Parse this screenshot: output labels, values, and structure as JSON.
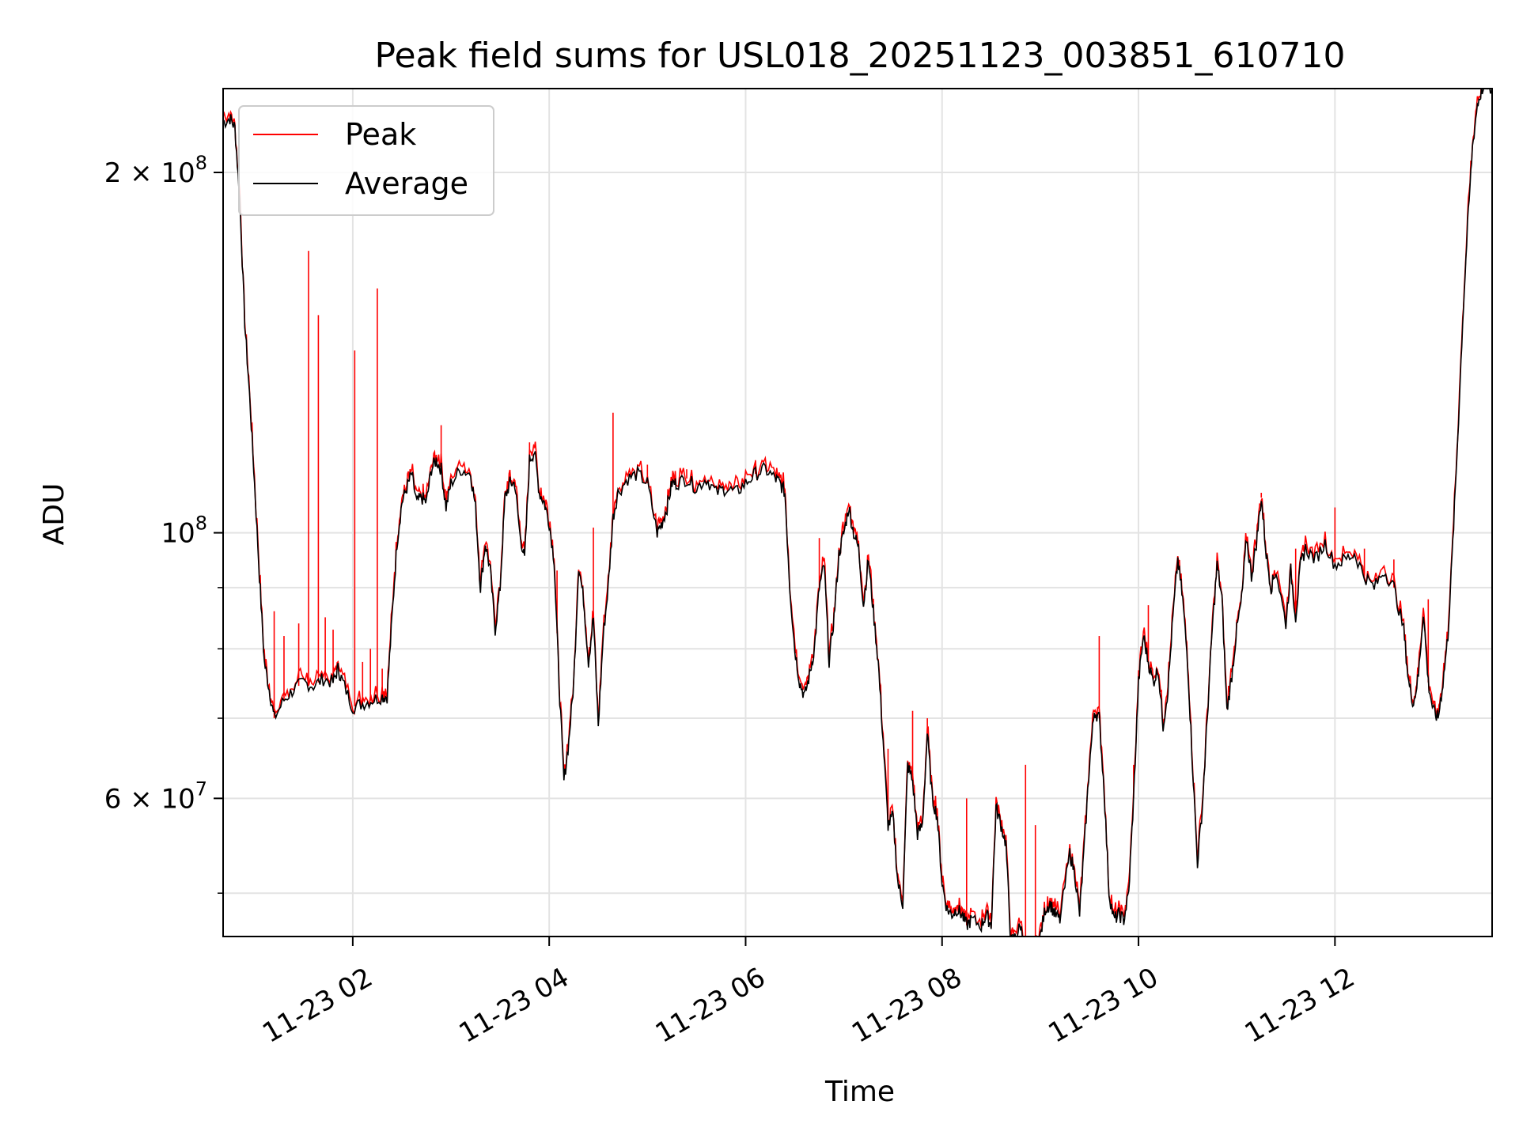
{
  "chart_data": {
    "type": "line",
    "title": "Peak field sums for USL018_20251123_003851_610710",
    "xlabel": "Time",
    "ylabel": "ADU",
    "x_unit": "hours since 2025-11-23 00:00",
    "xlim": [
      0.68,
      13.6
    ],
    "ylim": [
      46000000.0,
      235000000.0
    ],
    "yscale": "log",
    "grid": true,
    "legend_position": "top-left",
    "x_ticks": [
      {
        "value": 2,
        "label": "11-23 02"
      },
      {
        "value": 4,
        "label": "11-23 04"
      },
      {
        "value": 6,
        "label": "11-23 06"
      },
      {
        "value": 8,
        "label": "11-23 08"
      },
      {
        "value": 10,
        "label": "11-23 10"
      },
      {
        "value": 12,
        "label": "11-23 12"
      }
    ],
    "y_ticks": [
      {
        "value": 60000000.0,
        "base": "6 × 10",
        "exp": "7"
      },
      {
        "value": 100000000.0,
        "base": "10",
        "exp": "8"
      },
      {
        "value": 200000000.0,
        "base": "2 × 10",
        "exp": "8"
      }
    ],
    "y_minor_ticks": [
      50000000.0,
      70000000.0,
      80000000.0,
      90000000.0
    ],
    "series": [
      {
        "name": "Average",
        "color": "#000000",
        "points": [
          [
            0.68,
            220000000.0
          ],
          [
            0.75,
            222000000.0
          ],
          [
            0.8,
            218000000.0
          ],
          [
            0.85,
            190000000.0
          ],
          [
            0.9,
            150000000.0
          ],
          [
            0.95,
            130000000.0
          ],
          [
            1.0,
            110000000.0
          ],
          [
            1.05,
            92000000.0
          ],
          [
            1.1,
            78000000.0
          ],
          [
            1.15,
            74000000.0
          ],
          [
            1.2,
            70000000.0
          ],
          [
            1.3,
            72500000.0
          ],
          [
            1.4,
            74000000.0
          ],
          [
            1.5,
            75000000.0
          ],
          [
            1.6,
            74500000.0
          ],
          [
            1.7,
            75500000.0
          ],
          [
            1.8,
            75000000.0
          ],
          [
            1.85,
            77000000.0
          ],
          [
            1.9,
            75000000.0
          ],
          [
            2.0,
            71500000.0
          ],
          [
            2.1,
            72000000.0
          ],
          [
            2.2,
            72500000.0
          ],
          [
            2.3,
            73000000.0
          ],
          [
            2.35,
            73000000.0
          ],
          [
            2.4,
            85000000.0
          ],
          [
            2.45,
            98000000.0
          ],
          [
            2.5,
            106000000.0
          ],
          [
            2.55,
            109000000.0
          ],
          [
            2.6,
            112000000.0
          ],
          [
            2.65,
            106000000.0
          ],
          [
            2.7,
            107000000.0
          ],
          [
            2.75,
            106000000.0
          ],
          [
            2.8,
            113000000.0
          ],
          [
            2.85,
            115000000.0
          ],
          [
            2.9,
            113000000.0
          ],
          [
            2.95,
            105000000.0
          ],
          [
            3.0,
            110000000.0
          ],
          [
            3.1,
            113000000.0
          ],
          [
            3.2,
            112000000.0
          ],
          [
            3.25,
            105000000.0
          ],
          [
            3.3,
            90000000.0
          ],
          [
            3.35,
            98000000.0
          ],
          [
            3.4,
            93000000.0
          ],
          [
            3.45,
            83000000.0
          ],
          [
            3.5,
            90000000.0
          ],
          [
            3.55,
            107000000.0
          ],
          [
            3.6,
            110000000.0
          ],
          [
            3.65,
            110000000.0
          ],
          [
            3.7,
            100000000.0
          ],
          [
            3.75,
            95000000.0
          ],
          [
            3.8,
            115000000.0
          ],
          [
            3.85,
            117000000.0
          ],
          [
            3.9,
            108000000.0
          ],
          [
            3.95,
            106000000.0
          ],
          [
            4.0,
            102000000.0
          ],
          [
            4.05,
            95000000.0
          ],
          [
            4.1,
            75000000.0
          ],
          [
            4.15,
            62000000.0
          ],
          [
            4.2,
            67000000.0
          ],
          [
            4.25,
            75000000.0
          ],
          [
            4.3,
            94000000.0
          ],
          [
            4.35,
            88000000.0
          ],
          [
            4.4,
            78000000.0
          ],
          [
            4.45,
            85000000.0
          ],
          [
            4.5,
            69000000.0
          ],
          [
            4.55,
            82000000.0
          ],
          [
            4.6,
            90000000.0
          ],
          [
            4.65,
            103000000.0
          ],
          [
            4.7,
            108000000.0
          ],
          [
            4.8,
            111000000.0
          ],
          [
            4.9,
            112000000.0
          ],
          [
            5.0,
            110000000.0
          ],
          [
            5.1,
            100000000.0
          ],
          [
            5.15,
            102000000.0
          ],
          [
            5.2,
            105000000.0
          ],
          [
            5.25,
            110000000.0
          ],
          [
            5.3,
            110000000.0
          ],
          [
            5.4,
            111000000.0
          ],
          [
            5.5,
            109000000.0
          ],
          [
            5.6,
            111000000.0
          ],
          [
            5.7,
            108000000.0
          ],
          [
            5.8,
            109000000.0
          ],
          [
            5.9,
            108000000.0
          ],
          [
            6.0,
            110000000.0
          ],
          [
            6.1,
            112000000.0
          ],
          [
            6.2,
            113000000.0
          ],
          [
            6.3,
            111000000.0
          ],
          [
            6.35,
            110000000.0
          ],
          [
            6.4,
            108000000.0
          ],
          [
            6.45,
            90000000.0
          ],
          [
            6.5,
            80000000.0
          ],
          [
            6.55,
            75000000.0
          ],
          [
            6.6,
            73000000.0
          ],
          [
            6.65,
            76000000.0
          ],
          [
            6.7,
            80000000.0
          ],
          [
            6.75,
            90000000.0
          ],
          [
            6.8,
            94000000.0
          ],
          [
            6.85,
            78000000.0
          ],
          [
            6.9,
            85000000.0
          ],
          [
            6.95,
            96000000.0
          ],
          [
            7.0,
            100000000.0
          ],
          [
            7.05,
            105000000.0
          ],
          [
            7.1,
            100000000.0
          ],
          [
            7.15,
            97000000.0
          ],
          [
            7.2,
            87000000.0
          ],
          [
            7.25,
            95000000.0
          ],
          [
            7.3,
            86000000.0
          ],
          [
            7.35,
            78000000.0
          ],
          [
            7.4,
            67000000.0
          ],
          [
            7.45,
            57000000.0
          ],
          [
            7.5,
            58000000.0
          ],
          [
            7.55,
            51000000.0
          ],
          [
            7.6,
            49000000.0
          ],
          [
            7.65,
            64000000.0
          ],
          [
            7.7,
            62000000.0
          ],
          [
            7.75,
            56000000.0
          ],
          [
            7.8,
            57000000.0
          ],
          [
            7.85,
            68000000.0
          ],
          [
            7.9,
            60000000.0
          ],
          [
            7.95,
            58000000.0
          ],
          [
            8.0,
            51000000.0
          ],
          [
            8.05,
            48500000.0
          ],
          [
            8.1,
            48000000.0
          ],
          [
            8.15,
            48500000.0
          ],
          [
            8.2,
            48000000.0
          ],
          [
            8.25,
            47000000.0
          ],
          [
            8.3,
            47500000.0
          ],
          [
            8.4,
            47000000.0
          ],
          [
            8.45,
            48000000.0
          ],
          [
            8.5,
            47000000.0
          ],
          [
            8.55,
            59000000.0
          ],
          [
            8.6,
            57000000.0
          ],
          [
            8.65,
            55000000.0
          ],
          [
            8.7,
            45500000.0
          ],
          [
            8.75,
            46000000.0
          ],
          [
            8.8,
            47000000.0
          ],
          [
            8.85,
            44500000.0
          ],
          [
            8.9,
            43500000.0
          ],
          [
            8.95,
            44500000.0
          ],
          [
            9.0,
            46000000.0
          ],
          [
            9.05,
            48500000.0
          ],
          [
            9.1,
            49000000.0
          ],
          [
            9.15,
            48000000.0
          ],
          [
            9.2,
            47500000.0
          ],
          [
            9.3,
            54000000.0
          ],
          [
            9.35,
            52000000.0
          ],
          [
            9.4,
            48000000.0
          ],
          [
            9.45,
            55000000.0
          ],
          [
            9.5,
            64000000.0
          ],
          [
            9.55,
            71000000.0
          ],
          [
            9.6,
            70000000.0
          ],
          [
            9.65,
            61000000.0
          ],
          [
            9.7,
            50000000.0
          ],
          [
            9.75,
            47500000.0
          ],
          [
            9.8,
            48000000.0
          ],
          [
            9.85,
            47500000.0
          ],
          [
            9.9,
            50000000.0
          ],
          [
            9.95,
            60000000.0
          ],
          [
            10.0,
            75000000.0
          ],
          [
            10.05,
            82000000.0
          ],
          [
            10.1,
            78000000.0
          ],
          [
            10.15,
            75000000.0
          ],
          [
            10.2,
            77000000.0
          ],
          [
            10.25,
            69000000.0
          ],
          [
            10.3,
            74000000.0
          ],
          [
            10.35,
            85000000.0
          ],
          [
            10.4,
            95000000.0
          ],
          [
            10.45,
            88000000.0
          ],
          [
            10.5,
            78000000.0
          ],
          [
            10.55,
            64000000.0
          ],
          [
            10.6,
            53000000.0
          ],
          [
            10.65,
            59000000.0
          ],
          [
            10.7,
            70000000.0
          ],
          [
            10.75,
            83000000.0
          ],
          [
            10.8,
            94000000.0
          ],
          [
            10.85,
            88000000.0
          ],
          [
            10.9,
            71000000.0
          ],
          [
            10.95,
            76000000.0
          ],
          [
            11.0,
            83000000.0
          ],
          [
            11.05,
            88000000.0
          ],
          [
            11.1,
            99000000.0
          ],
          [
            11.15,
            92000000.0
          ],
          [
            11.2,
            98000000.0
          ],
          [
            11.25,
            107000000.0
          ],
          [
            11.3,
            96000000.0
          ],
          [
            11.35,
            90000000.0
          ],
          [
            11.4,
            93000000.0
          ],
          [
            11.5,
            84000000.0
          ],
          [
            11.55,
            93000000.0
          ],
          [
            11.6,
            85000000.0
          ],
          [
            11.65,
            94000000.0
          ],
          [
            11.7,
            97000000.0
          ],
          [
            11.8,
            95000000.0
          ],
          [
            11.9,
            98000000.0
          ],
          [
            12.0,
            94000000.0
          ],
          [
            12.1,
            95000000.0
          ],
          [
            12.2,
            96000000.0
          ],
          [
            12.3,
            92000000.0
          ],
          [
            12.4,
            90000000.0
          ],
          [
            12.5,
            93000000.0
          ],
          [
            12.6,
            90000000.0
          ],
          [
            12.7,
            83000000.0
          ],
          [
            12.75,
            75000000.0
          ],
          [
            12.8,
            72000000.0
          ],
          [
            12.85,
            76000000.0
          ],
          [
            12.9,
            86000000.0
          ],
          [
            12.95,
            75000000.0
          ],
          [
            13.0,
            71000000.0
          ],
          [
            13.05,
            70000000.0
          ],
          [
            13.1,
            75000000.0
          ],
          [
            13.15,
            82000000.0
          ],
          [
            13.2,
            98000000.0
          ],
          [
            13.25,
            120000000.0
          ],
          [
            13.3,
            150000000.0
          ],
          [
            13.35,
            180000000.0
          ],
          [
            13.4,
            210000000.0
          ],
          [
            13.45,
            228000000.0
          ],
          [
            13.5,
            235000000.0
          ],
          [
            13.6,
            235000000.0
          ]
        ]
      },
      {
        "name": "Peak",
        "color": "#ff0000",
        "spikes": [
          [
            1.2,
            86000000.0
          ],
          [
            1.3,
            82000000.0
          ],
          [
            1.45,
            84000000.0
          ],
          [
            1.55,
            172000000.0
          ],
          [
            1.65,
            152000000.0
          ],
          [
            1.72,
            85000000.0
          ],
          [
            1.8,
            83000000.0
          ],
          [
            2.02,
            142000000.0
          ],
          [
            2.1,
            78000000.0
          ],
          [
            2.18,
            80000000.0
          ],
          [
            2.25,
            160000000.0
          ],
          [
            2.3,
            77000000.0
          ],
          [
            2.9,
            123000000.0
          ],
          [
            3.8,
            119000000.0
          ],
          [
            4.08,
            93000000.0
          ],
          [
            4.45,
            101000000.0
          ],
          [
            4.65,
            126000000.0
          ],
          [
            5.0,
            114000000.0
          ],
          [
            5.4,
            113000000.0
          ],
          [
            6.1,
            115000000.0
          ],
          [
            6.75,
            99000000.0
          ],
          [
            7.45,
            66000000.0
          ],
          [
            7.7,
            71000000.0
          ],
          [
            7.85,
            70000000.0
          ],
          [
            8.25,
            60000000.0
          ],
          [
            8.85,
            64000000.0
          ],
          [
            8.95,
            57000000.0
          ],
          [
            9.6,
            82000000.0
          ],
          [
            9.95,
            64000000.0
          ],
          [
            10.1,
            87000000.0
          ],
          [
            10.35,
            85000000.0
          ],
          [
            11.25,
            108000000.0
          ],
          [
            11.6,
            97000000.0
          ],
          [
            12.0,
            105000000.0
          ],
          [
            12.3,
            97000000.0
          ],
          [
            12.6,
            95000000.0
          ],
          [
            12.95,
            88000000.0
          ]
        ]
      }
    ]
  }
}
